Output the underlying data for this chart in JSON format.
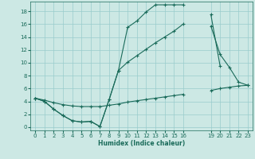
{
  "xlabel": "Humidex (Indice chaleur)",
  "bg_color": "#cce8e4",
  "line_color": "#1a6b5a",
  "grid_color": "#99cccc",
  "xlim": [
    -0.5,
    23.5
  ],
  "ylim": [
    -0.5,
    19.5
  ],
  "xticks": [
    0,
    1,
    2,
    3,
    4,
    5,
    6,
    7,
    8,
    9,
    10,
    11,
    12,
    13,
    14,
    15,
    16,
    19,
    20,
    21,
    22,
    23
  ],
  "yticks": [
    0,
    2,
    4,
    6,
    8,
    10,
    12,
    14,
    16,
    18
  ],
  "line1_x": [
    0,
    1,
    2,
    3,
    4,
    5,
    6,
    7,
    8,
    9,
    10,
    11,
    12,
    13,
    14,
    15,
    16,
    19,
    20
  ],
  "line1_y": [
    4.5,
    4.0,
    2.8,
    1.8,
    1.0,
    0.8,
    0.9,
    0.1,
    4.3,
    8.8,
    15.5,
    16.5,
    17.9,
    19.0,
    19.0,
    19.0,
    19.0,
    17.5,
    9.5
  ],
  "line2_x": [
    0,
    1,
    2,
    3,
    4,
    5,
    6,
    7,
    8,
    9,
    10,
    11,
    12,
    13,
    14,
    15,
    16,
    19,
    20,
    21,
    22,
    23
  ],
  "line2_y": [
    4.5,
    4.0,
    2.8,
    1.8,
    1.0,
    0.8,
    0.9,
    0.1,
    4.3,
    8.8,
    10.1,
    11.1,
    12.1,
    13.1,
    14.0,
    14.9,
    16.0,
    15.7,
    11.3,
    9.3,
    7.0,
    6.5
  ],
  "line3_x": [
    0,
    1,
    2,
    3,
    4,
    5,
    6,
    7,
    8,
    9,
    10,
    11,
    12,
    13,
    14,
    15,
    16,
    19,
    20,
    21,
    22,
    23
  ],
  "line3_y": [
    4.5,
    4.2,
    3.8,
    3.5,
    3.3,
    3.2,
    3.2,
    3.2,
    3.4,
    3.6,
    3.9,
    4.1,
    4.3,
    4.5,
    4.7,
    4.9,
    5.1,
    5.7,
    6.0,
    6.2,
    6.4,
    6.5
  ]
}
